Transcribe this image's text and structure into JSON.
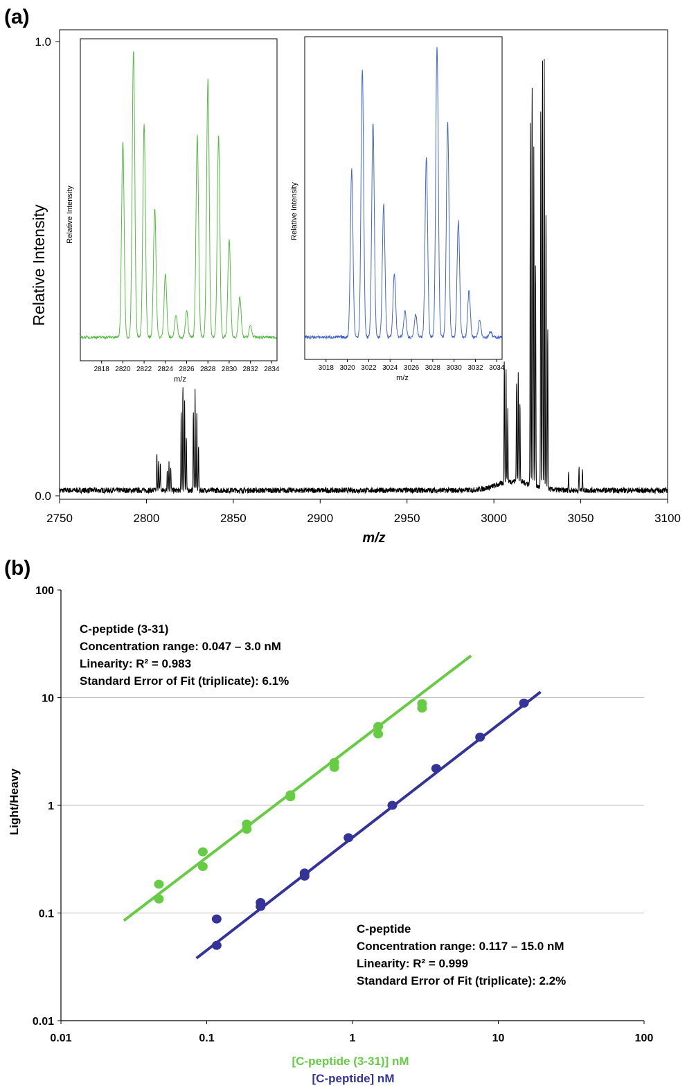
{
  "panels": {
    "a_label": "(a)",
    "b_label": "(b)"
  },
  "colors": {
    "black_spectrum": "#000000",
    "green": "#66cc44",
    "blue": "#333399",
    "inset_green": "#55bb44",
    "inset_blue": "#4466cc",
    "grid": "#bbbbbb"
  },
  "chart_data": [
    {
      "type": "line",
      "panel": "a",
      "xlabel": "m/z",
      "ylabel": "Relative Intensity",
      "xlim": [
        2750,
        3100
      ],
      "ylim": [
        0.0,
        1.0
      ],
      "xticks": [
        "2750",
        "2800",
        "2850",
        "2900",
        "2950",
        "3000",
        "3050",
        "3100"
      ],
      "yticks": [
        "0.0",
        "1.0"
      ],
      "grid": false,
      "peaks": [
        {
          "x": 2806,
          "y": 0.08
        },
        {
          "x": 2807,
          "y": 0.07
        },
        {
          "x": 2808,
          "y": 0.06
        },
        {
          "x": 2812,
          "y": 0.05
        },
        {
          "x": 2813,
          "y": 0.06
        },
        {
          "x": 2814,
          "y": 0.05
        },
        {
          "x": 2820,
          "y": 0.18
        },
        {
          "x": 2821,
          "y": 0.24
        },
        {
          "x": 2822,
          "y": 0.2
        },
        {
          "x": 2823,
          "y": 0.12
        },
        {
          "x": 2827,
          "y": 0.18
        },
        {
          "x": 2828,
          "y": 0.22
        },
        {
          "x": 2829,
          "y": 0.17
        },
        {
          "x": 2830,
          "y": 0.1
        },
        {
          "x": 3006,
          "y": 0.28
        },
        {
          "x": 3007,
          "y": 0.26
        },
        {
          "x": 3008,
          "y": 0.16
        },
        {
          "x": 3013,
          "y": 0.22
        },
        {
          "x": 3014,
          "y": 0.24
        },
        {
          "x": 3015,
          "y": 0.18
        },
        {
          "x": 3021,
          "y": 0.82
        },
        {
          "x": 3022,
          "y": 0.9
        },
        {
          "x": 3023,
          "y": 0.74
        },
        {
          "x": 3024,
          "y": 0.5
        },
        {
          "x": 3027,
          "y": 0.85
        },
        {
          "x": 3028,
          "y": 0.97
        },
        {
          "x": 3029,
          "y": 0.95
        },
        {
          "x": 3030,
          "y": 0.62
        },
        {
          "x": 3031,
          "y": 0.36
        },
        {
          "x": 3043,
          "y": 0.04
        },
        {
          "x": 3049,
          "y": 0.05
        },
        {
          "x": 3051,
          "y": 0.05
        }
      ]
    },
    {
      "type": "line",
      "panel": "a-inset-green",
      "xlabel": "m/z",
      "ylabel": "Relative Intensity",
      "xlim": [
        2816,
        2834.5
      ],
      "xticks": [
        "2818",
        "2820",
        "2822",
        "2824",
        "2826",
        "2828",
        "2830",
        "2832",
        "2834"
      ],
      "peaks": [
        {
          "x": 2820.0,
          "y": 0.68
        },
        {
          "x": 2821.0,
          "y": 1.0
        },
        {
          "x": 2822.0,
          "y": 0.74
        },
        {
          "x": 2823.0,
          "y": 0.45
        },
        {
          "x": 2824.0,
          "y": 0.22
        },
        {
          "x": 2825.0,
          "y": 0.08
        },
        {
          "x": 2826.0,
          "y": 0.09
        },
        {
          "x": 2827.0,
          "y": 0.7
        },
        {
          "x": 2828.0,
          "y": 0.9
        },
        {
          "x": 2829.0,
          "y": 0.7
        },
        {
          "x": 2830.0,
          "y": 0.34
        },
        {
          "x": 2831.0,
          "y": 0.14
        },
        {
          "x": 2832.0,
          "y": 0.04
        }
      ]
    },
    {
      "type": "line",
      "panel": "a-inset-blue",
      "xlabel": "m/z",
      "ylabel": "Relative Intensity",
      "xlim": [
        3016,
        3034.5
      ],
      "xticks": [
        "3018",
        "3020",
        "3022",
        "3024",
        "3026",
        "3028",
        "3030",
        "3032",
        "3034"
      ],
      "peaks": [
        {
          "x": 3020.4,
          "y": 0.58
        },
        {
          "x": 3021.4,
          "y": 0.92
        },
        {
          "x": 3022.4,
          "y": 0.74
        },
        {
          "x": 3023.4,
          "y": 0.46
        },
        {
          "x": 3024.4,
          "y": 0.22
        },
        {
          "x": 3025.4,
          "y": 0.09
        },
        {
          "x": 3026.4,
          "y": 0.08
        },
        {
          "x": 3027.4,
          "y": 0.62
        },
        {
          "x": 3028.4,
          "y": 1.0
        },
        {
          "x": 3029.4,
          "y": 0.74
        },
        {
          "x": 3030.4,
          "y": 0.4
        },
        {
          "x": 3031.4,
          "y": 0.16
        },
        {
          "x": 3032.4,
          "y": 0.06
        },
        {
          "x": 3033.4,
          "y": 0.02
        }
      ]
    },
    {
      "type": "scatter",
      "panel": "b",
      "scale": "log-log",
      "xlabel": "[C-peptide (3-31)] nM",
      "xlabel2": "[C-peptide] nM",
      "ylabel": "Light/Heavy",
      "xlim": [
        0.01,
        100
      ],
      "ylim": [
        0.01,
        100
      ],
      "xticks": [
        "0.01",
        "0.1",
        "1",
        "10",
        "100"
      ],
      "yticks": [
        "0.01",
        "0.1",
        "1",
        "10",
        "100"
      ],
      "grid": true,
      "annotations": [
        {
          "lines": [
            "C-peptide (3-31)",
            "Concentration range: 0.047 – 3.0 nM",
            "Linearity: R² = 0.983",
            "Standard Error of Fit (triplicate): 6.1%"
          ]
        },
        {
          "lines": [
            "C-peptide",
            "Concentration range: 0.117 – 15.0 nM",
            "Linearity: R² = 0.999",
            "Standard Error of Fit (triplicate): 2.2%"
          ]
        }
      ],
      "series": [
        {
          "color": "#66cc44",
          "points": [
            [
              0.047,
              0.185
            ],
            [
              0.047,
              0.135
            ],
            [
              0.094,
              0.37
            ],
            [
              0.094,
              0.27
            ],
            [
              0.188,
              0.67
            ],
            [
              0.188,
              0.6
            ],
            [
              0.375,
              1.25
            ],
            [
              0.375,
              1.2
            ],
            [
              0.75,
              2.5
            ],
            [
              0.75,
              2.25
            ],
            [
              1.5,
              5.4
            ],
            [
              1.5,
              4.6
            ],
            [
              3.0,
              8.8
            ],
            [
              3.0,
              8.0
            ]
          ],
          "fit": [
            [
              0.027,
              0.085
            ],
            [
              6.5,
              24.5
            ]
          ]
        },
        {
          "color": "#333399",
          "points": [
            [
              0.117,
              0.088
            ],
            [
              0.117,
              0.05
            ],
            [
              0.234,
              0.125
            ],
            [
              0.234,
              0.115
            ],
            [
              0.469,
              0.235
            ],
            [
              0.469,
              0.22
            ],
            [
              0.938,
              0.5
            ],
            [
              1.875,
              1.0
            ],
            [
              3.75,
              2.2
            ],
            [
              7.5,
              4.3
            ],
            [
              15.0,
              8.9
            ]
          ],
          "fit": [
            [
              0.085,
              0.038
            ],
            [
              19.5,
              11.3
            ]
          ]
        }
      ]
    }
  ]
}
